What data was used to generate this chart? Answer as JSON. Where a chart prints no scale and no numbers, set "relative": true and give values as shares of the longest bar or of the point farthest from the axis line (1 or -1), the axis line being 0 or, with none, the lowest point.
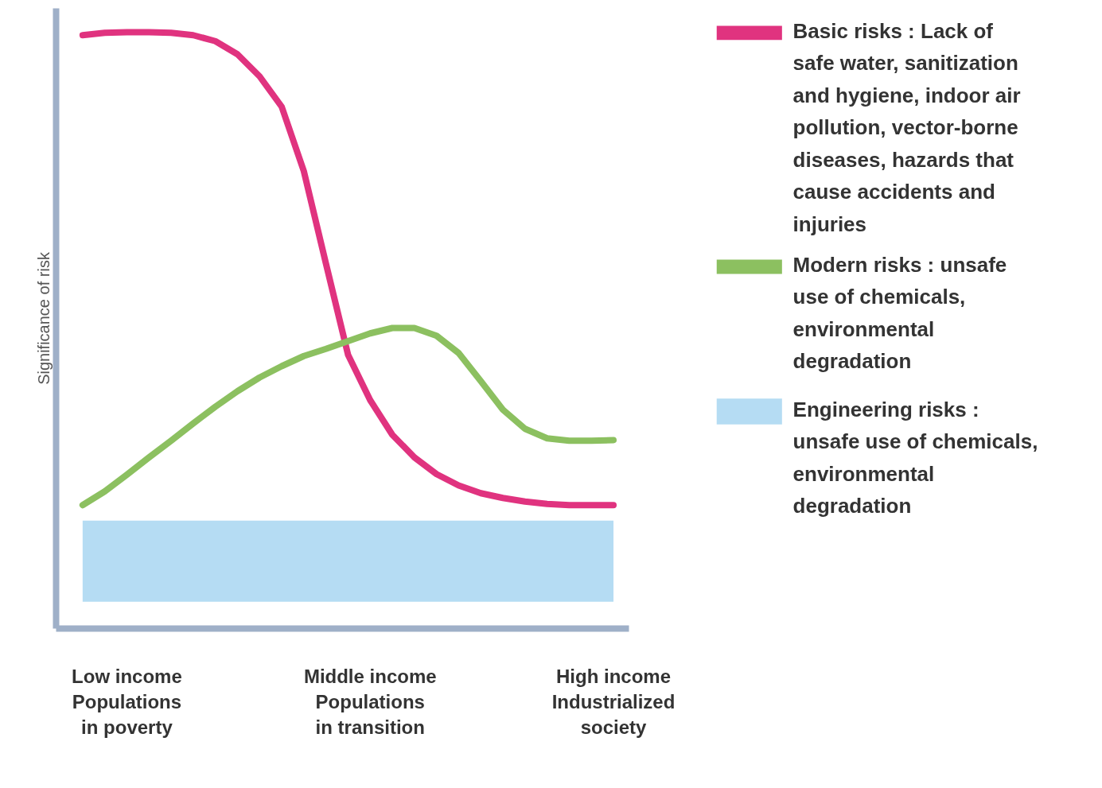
{
  "chart_data": {
    "type": "line",
    "relative": true,
    "ylabel": "Significance of risk",
    "legend": "right",
    "grid": false,
    "line_style": "solid",
    "marker": "none",
    "categories": [
      null,
      null,
      "Low income Populations in poverty",
      null,
      null,
      null,
      null,
      null,
      null,
      null,
      null,
      null,
      null,
      "Middle income Populations in transition",
      null,
      null,
      null,
      null,
      null,
      null,
      null,
      null,
      null,
      null,
      "High income Industrialized society"
    ],
    "series": [
      {
        "name": "Basic risks : Lack of safe water, sanitization and hygiene, indoor air pollution, vector-borne diseases, hazards that cause accidents and injuries",
        "color": "#e0337f",
        "values": [
          0.995,
          0.999,
          1.0,
          1.0,
          0.999,
          0.995,
          0.985,
          0.963,
          0.926,
          0.875,
          0.767,
          0.612,
          0.459,
          0.383,
          0.325,
          0.287,
          0.259,
          0.24,
          0.227,
          0.219,
          0.213,
          0.209,
          0.207,
          0.207,
          0.207
        ]
      },
      {
        "name": "Modern risks : unsafe use of chemicals, environmental degradation",
        "color": "#8cc060",
        "values": [
          0.207,
          0.23,
          0.258,
          0.287,
          0.315,
          0.344,
          0.372,
          0.398,
          0.421,
          0.44,
          0.457,
          0.469,
          0.482,
          0.495,
          0.504,
          0.504,
          0.491,
          0.462,
          0.415,
          0.367,
          0.335,
          0.319,
          0.315,
          0.315,
          0.316
        ]
      }
    ],
    "bands": [
      {
        "axis": "y",
        "from": 0.045,
        "to": 0.181,
        "label": "Engineering risks : unsafe use of chemicals, environmental degradation",
        "color": "#b5dcf3"
      }
    ]
  }
}
